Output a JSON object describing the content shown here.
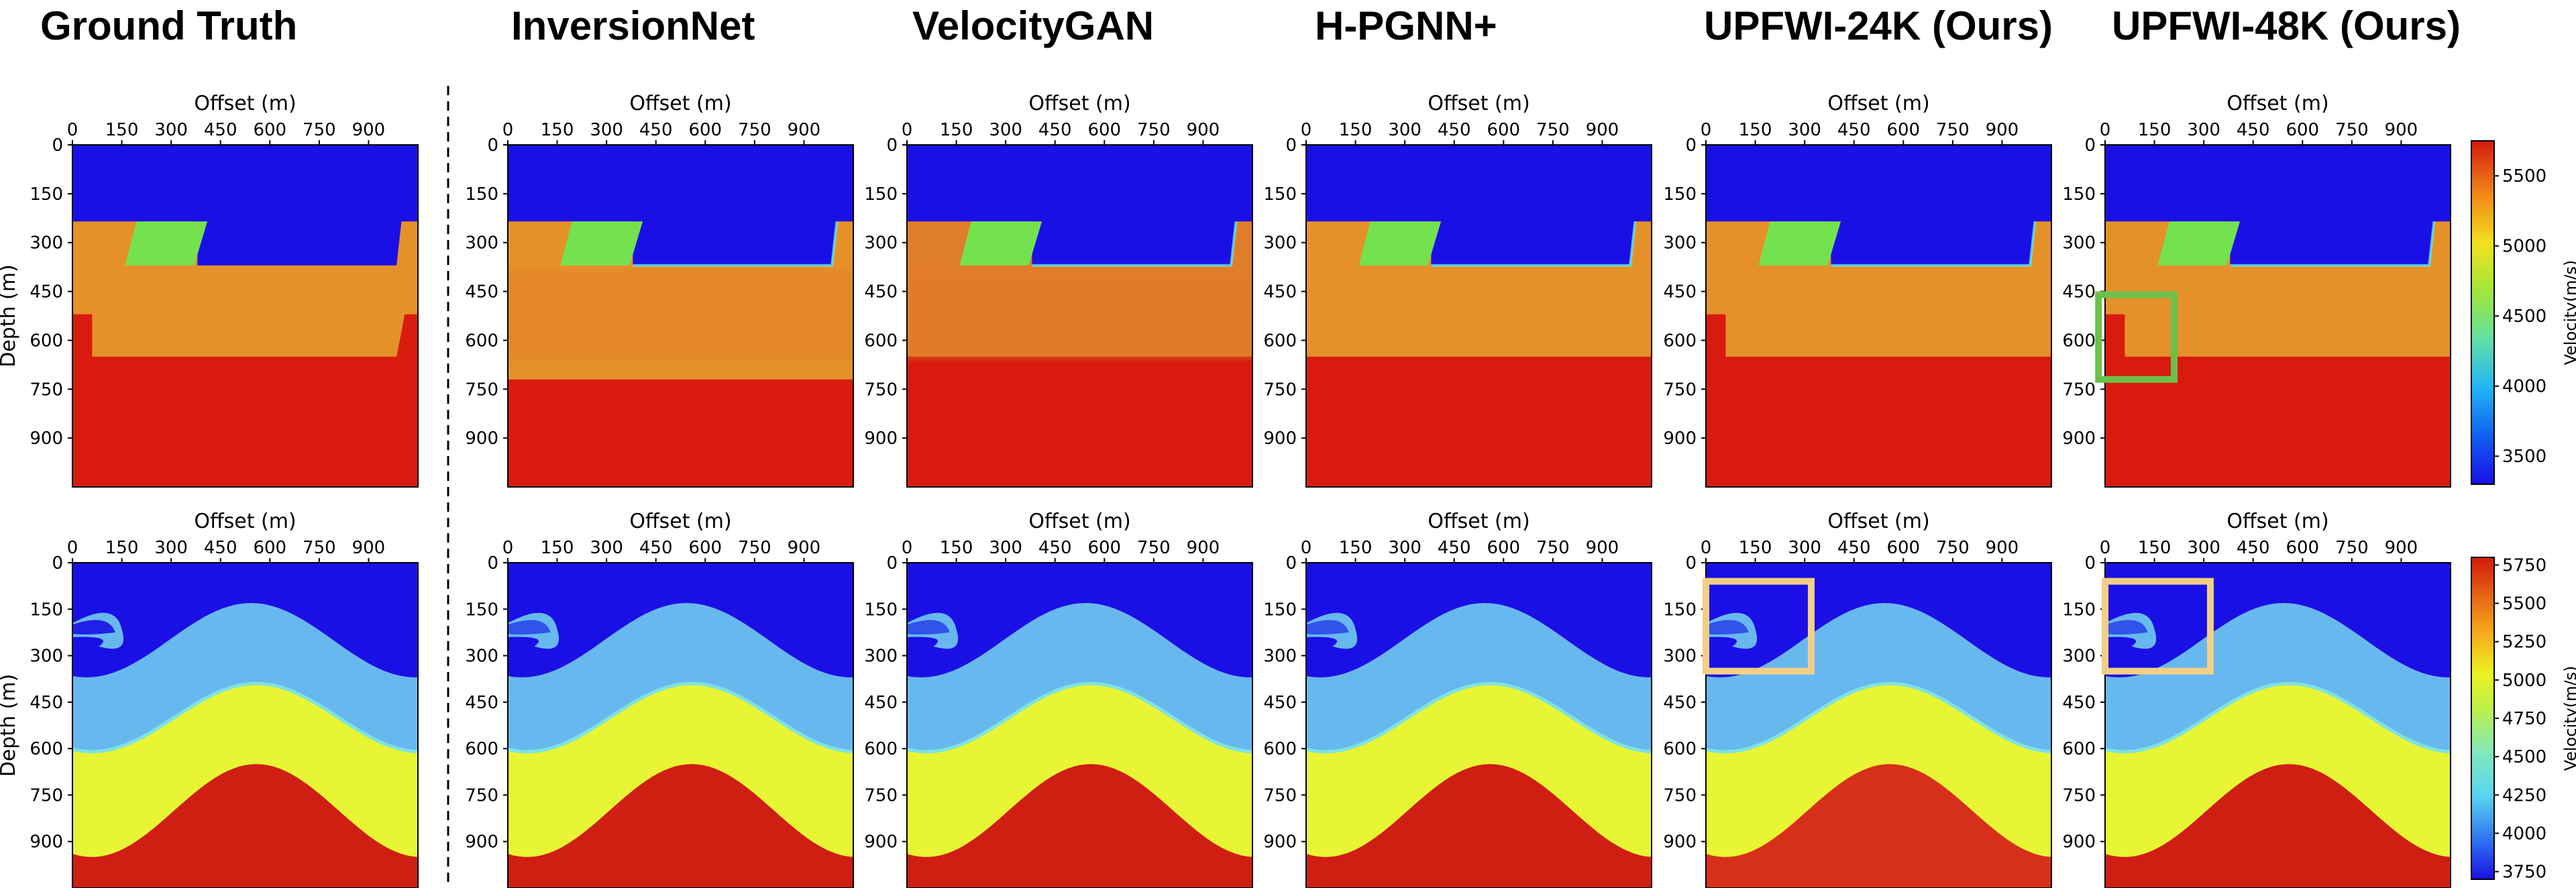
{
  "panel_titles": [
    "Ground Truth",
    "InversionNet",
    "VelocityGAN",
    "H-PGNN+",
    "UPFWI-24K (Ours)",
    "UPFWI-48K (Ours)"
  ],
  "colors": {
    "divider": "#000000",
    "highlight_green": "#6cc04a",
    "highlight_tan": "#f2cf86"
  },
  "chart_data": [
    {
      "type": "heatmap",
      "row": "top",
      "description_kind": "velocity model panels (fault family)",
      "xlabel": "Offset (m)",
      "ylabel": "Depth (m)",
      "xticks": [
        0,
        150,
        300,
        450,
        600,
        750,
        900
      ],
      "yticks": [
        0,
        150,
        300,
        450,
        600,
        750,
        900
      ],
      "xlim": [
        0,
        1050
      ],
      "ylim": [
        1050,
        0
      ],
      "colormap": "jet",
      "colorbar": {
        "label": "Velocity(m/s)",
        "ticks": [
          3500,
          4000,
          4500,
          5000,
          5500
        ],
        "range": [
          3300,
          5750
        ]
      },
      "panels": [
        {
          "title": "Ground Truth",
          "layers": [
            {
              "velocity": 3300,
              "top": 0
            },
            {
              "velocity": 5450,
              "top": 240,
              "note": "step down to 380 m for 380–1030 m offset"
            },
            {
              "velocity": 4300,
              "top": 240,
              "inclusion": "parallelogram block 170–410 m offset"
            },
            {
              "velocity": 5750,
              "top": 650,
              "note": "deepens to 520 m at edges"
            }
          ]
        },
        {
          "title": "InversionNet"
        },
        {
          "title": "VelocityGAN"
        },
        {
          "title": "H-PGNN+"
        },
        {
          "title": "UPFWI-24K (Ours)"
        },
        {
          "title": "UPFWI-48K (Ours)",
          "highlight": {
            "color": "green",
            "x": [
              -20,
              210
            ],
            "y": [
              460,
              720
            ]
          }
        }
      ]
    },
    {
      "type": "heatmap",
      "row": "bottom",
      "description_kind": "velocity model panels (curved layers family)",
      "xlabel": "Offset (m)",
      "ylabel": "Depth (m)",
      "xticks": [
        0,
        150,
        300,
        450,
        600,
        750,
        900
      ],
      "yticks": [
        0,
        150,
        300,
        450,
        600,
        750,
        900
      ],
      "xlim": [
        0,
        1050
      ],
      "ylim": [
        1050,
        0
      ],
      "colormap": "jet",
      "colorbar": {
        "label": "Velocity(m/s)",
        "ticks": [
          3750,
          4000,
          4250,
          4500,
          4750,
          5000,
          5250,
          5500,
          5750
        ],
        "range": [
          3700,
          5800
        ]
      },
      "panels": [
        {
          "title": "Ground Truth"
        },
        {
          "title": "InversionNet"
        },
        {
          "title": "VelocityGAN"
        },
        {
          "title": "H-PGNN+"
        },
        {
          "title": "UPFWI-24K (Ours)",
          "highlight": {
            "color": "tan",
            "x": [
              0,
              320
            ],
            "y": [
              60,
              350
            ]
          }
        },
        {
          "title": "UPFWI-48K (Ours)",
          "highlight": {
            "color": "tan",
            "x": [
              0,
              320
            ],
            "y": [
              60,
              350
            ]
          }
        }
      ]
    }
  ]
}
